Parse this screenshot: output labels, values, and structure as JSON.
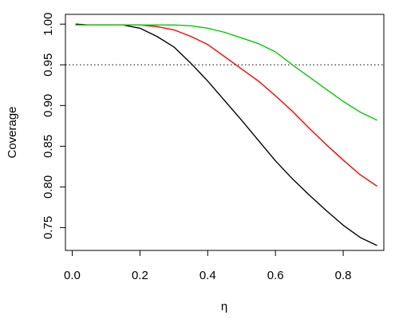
{
  "chart_data": {
    "type": "line",
    "title": "",
    "xlabel": "η",
    "ylabel": "Coverage",
    "xlim": [
      -0.02,
      0.92
    ],
    "ylim": [
      0.722,
      1.012
    ],
    "x_ticks": [
      0.0,
      0.2,
      0.4,
      0.6,
      0.8
    ],
    "x_tick_labels": [
      "0.0",
      "0.2",
      "0.4",
      "0.6",
      "0.8"
    ],
    "y_ticks": [
      0.75,
      0.8,
      0.85,
      0.9,
      0.95,
      1.0
    ],
    "y_tick_labels": [
      "0.75",
      "0.80",
      "0.85",
      "0.90",
      "0.95",
      "1.00"
    ],
    "grid": false,
    "legend": "none",
    "reference_line": {
      "y": 0.95,
      "style": "dotted",
      "color": "#000000"
    },
    "series": [
      {
        "color": "#000000",
        "x": [
          0.01,
          0.05,
          0.1,
          0.15,
          0.2,
          0.25,
          0.3,
          0.35,
          0.4,
          0.45,
          0.5,
          0.55,
          0.6,
          0.65,
          0.7,
          0.75,
          0.8,
          0.85,
          0.9
        ],
        "y": [
          1.0,
          0.999,
          0.999,
          0.999,
          0.995,
          0.985,
          0.972,
          0.952,
          0.93,
          0.906,
          0.882,
          0.857,
          0.832,
          0.81,
          0.79,
          0.771,
          0.753,
          0.738,
          0.728
        ]
      },
      {
        "color": "#ff0000",
        "x": [
          0.01,
          0.05,
          0.1,
          0.15,
          0.2,
          0.25,
          0.3,
          0.35,
          0.4,
          0.45,
          0.5,
          0.55,
          0.6,
          0.65,
          0.7,
          0.75,
          0.8,
          0.85,
          0.9
        ],
        "y": [
          0.999,
          0.999,
          0.999,
          0.999,
          0.999,
          0.997,
          0.993,
          0.985,
          0.975,
          0.96,
          0.945,
          0.93,
          0.912,
          0.893,
          0.872,
          0.852,
          0.833,
          0.815,
          0.801
        ]
      },
      {
        "color": "#00cc00",
        "x": [
          0.01,
          0.05,
          0.1,
          0.15,
          0.2,
          0.25,
          0.3,
          0.35,
          0.4,
          0.45,
          0.5,
          0.55,
          0.6,
          0.65,
          0.7,
          0.75,
          0.8,
          0.85,
          0.9
        ],
        "y": [
          0.999,
          0.999,
          0.999,
          0.999,
          0.999,
          0.999,
          0.999,
          0.998,
          0.995,
          0.99,
          0.983,
          0.976,
          0.966,
          0.95,
          0.935,
          0.92,
          0.905,
          0.892,
          0.882
        ]
      }
    ]
  }
}
